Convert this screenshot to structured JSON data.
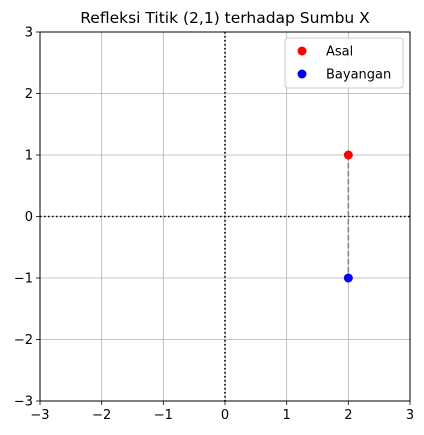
{
  "chart_data": {
    "type": "scatter",
    "title": "Refleksi Titik (2,1) terhadap Sumbu X",
    "xlabel": "",
    "ylabel": "",
    "xlim": [
      -3,
      3
    ],
    "ylim": [
      -3,
      3
    ],
    "xticks": [
      -3,
      -2,
      -1,
      0,
      1,
      2,
      3
    ],
    "yticks": [
      -3,
      -2,
      -1,
      0,
      1,
      2,
      3
    ],
    "grid": true,
    "legend_position": "top-right",
    "series": [
      {
        "name": "Asal",
        "color": "#ff0000",
        "points": [
          [
            2,
            1
          ]
        ]
      },
      {
        "name": "Bayangan",
        "color": "#0000ff",
        "points": [
          [
            2,
            -1
          ]
        ]
      }
    ],
    "connector": {
      "from": [
        2,
        1
      ],
      "to": [
        2,
        -1
      ],
      "color": "#808080",
      "style": "dashed"
    },
    "reference_lines": [
      {
        "axis": "y",
        "value": 0,
        "style": "dotted",
        "color": "#000000"
      },
      {
        "axis": "x",
        "value": 0,
        "style": "dotted",
        "color": "#000000"
      }
    ]
  }
}
